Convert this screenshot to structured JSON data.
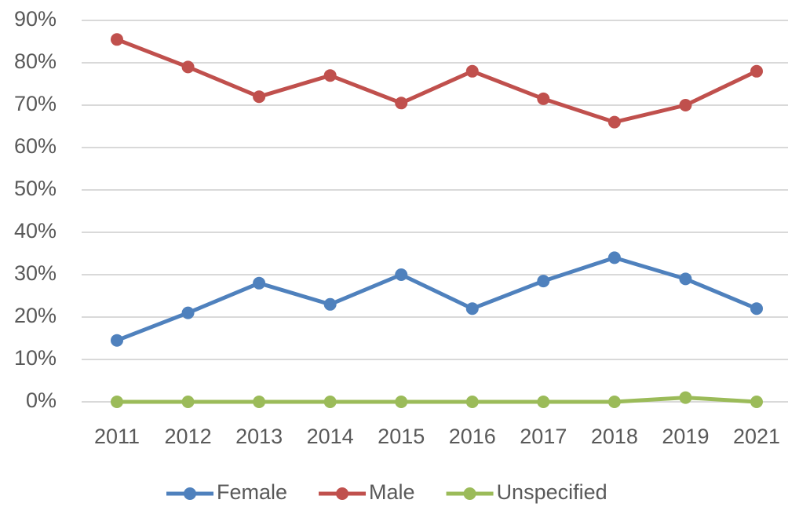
{
  "chart_data": {
    "type": "line",
    "categories": [
      "2011",
      "2012",
      "2013",
      "2014",
      "2015",
      "2016",
      "2017",
      "2018",
      "2019",
      "2021"
    ],
    "series": [
      {
        "name": "Female",
        "color": "#4f81bd",
        "values": [
          14.5,
          21,
          28,
          23,
          30,
          22,
          28.5,
          34,
          29,
          22
        ]
      },
      {
        "name": "Male",
        "color": "#c0504d",
        "values": [
          85.5,
          79,
          72,
          77,
          70.5,
          78,
          71.5,
          66,
          70,
          78
        ]
      },
      {
        "name": "Unspecified",
        "color": "#9bbb59",
        "values": [
          0,
          0,
          0,
          0,
          0,
          0,
          0,
          0,
          1,
          0
        ]
      }
    ],
    "ylim": [
      0,
      90
    ],
    "yticks": [
      {
        "value": 0,
        "label": "0%"
      },
      {
        "value": 10,
        "label": "10%"
      },
      {
        "value": 20,
        "label": "20%"
      },
      {
        "value": 30,
        "label": "30%"
      },
      {
        "value": 40,
        "label": "40%"
      },
      {
        "value": 50,
        "label": "50%"
      },
      {
        "value": 60,
        "label": "60%"
      },
      {
        "value": 70,
        "label": "70%"
      },
      {
        "value": 80,
        "label": "80%"
      },
      {
        "value": 90,
        "label": "90%"
      }
    ],
    "grid": true,
    "legend": "bottom"
  }
}
